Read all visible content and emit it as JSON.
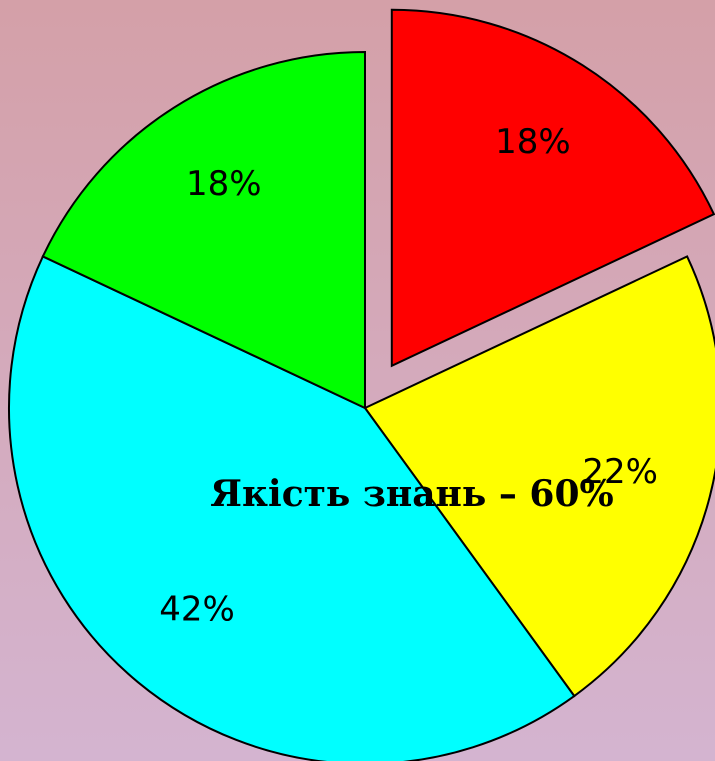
{
  "chart_data": {
    "type": "pie",
    "values": [
      18,
      22,
      42,
      18
    ],
    "value_labels": [
      "18%",
      "22%",
      "42%",
      "18%"
    ],
    "colors": [
      "#ff0000",
      "#ffff00",
      "#00ffff",
      "#00ff00"
    ],
    "explode": [
      true,
      false,
      false,
      false
    ],
    "annotation": "Якість знань – 60%"
  }
}
